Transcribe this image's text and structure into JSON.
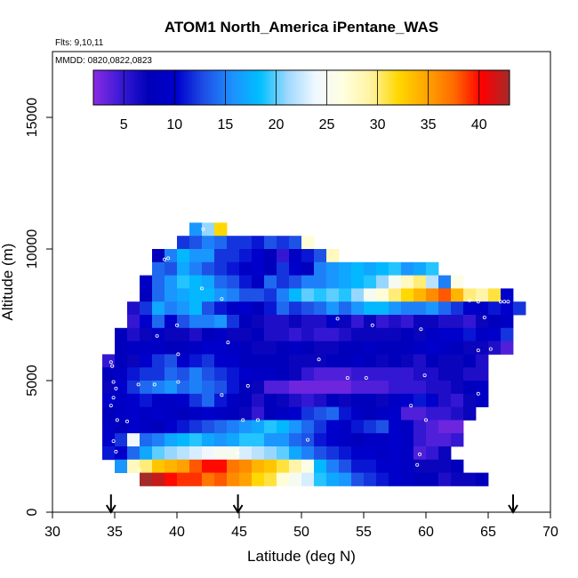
{
  "chart_data": {
    "type": "heatmap",
    "title": "ATOM1 North_America iPentane_WAS",
    "annotations": [
      "Flts: 9,10,11",
      "MMDD: 0820,0822,0823"
    ],
    "xlabel": "Latitude (deg N)",
    "ylabel": "Altitude (m)",
    "xlim": [
      30,
      70
    ],
    "ylim": [
      0,
      17500
    ],
    "xticks": [
      30,
      35,
      40,
      45,
      50,
      55,
      60,
      65,
      70
    ],
    "yticks": [
      0,
      5000,
      10000,
      15000
    ],
    "colorbar": {
      "range": [
        2,
        43
      ],
      "ticks": [
        5,
        10,
        15,
        20,
        25,
        30,
        35,
        40
      ],
      "colors": [
        "#8a2be2",
        "#3a1ad6",
        "#0000b8",
        "#0000cd",
        "#1e50e6",
        "#1e90ff",
        "#00bfff",
        "#9fd8ff",
        "#f0f8ff",
        "#ffffe0",
        "#fff3a0",
        "#ffd700",
        "#ffa500",
        "#ff6a00",
        "#ff0000",
        "#a52a2a"
      ]
    },
    "arrows_latitude": [
      34.7,
      44.9,
      67.0
    ],
    "cell_size": {
      "dlat": 1.0,
      "dalt": 500
    },
    "rows": [
      {
        "alt": 10750,
        "lat0": 41.5,
        "values": [
          16,
          21,
          32
        ]
      },
      {
        "alt": 10250,
        "lat0": 40.5,
        "values": [
          12,
          13,
          15,
          14,
          12,
          12,
          11,
          13,
          12,
          13,
          27
        ]
      },
      {
        "alt": 9750,
        "lat0": 38.5,
        "values": [
          8,
          15,
          18,
          16,
          16,
          12,
          12,
          11,
          10,
          8,
          5,
          9,
          11,
          13,
          28
        ]
      },
      {
        "alt": 9250,
        "lat0": 38.5,
        "values": [
          14,
          13,
          17,
          15,
          13,
          12,
          11,
          9,
          10,
          8,
          12,
          10,
          8,
          15,
          16,
          17,
          18,
          17,
          18,
          19,
          16,
          17,
          19
        ]
      },
      {
        "alt": 8750,
        "lat0": 37.5,
        "values": [
          9,
          14,
          16,
          19,
          18,
          17,
          14,
          13,
          11,
          9,
          14,
          12,
          13,
          15,
          15,
          16,
          17,
          18,
          19,
          21,
          25,
          28,
          30,
          22,
          15,
          26
        ]
      },
      {
        "alt": 8250,
        "lat0": 37.5,
        "values": [
          8,
          14,
          16,
          17,
          18,
          18,
          16,
          15,
          13,
          13,
          12,
          15,
          18,
          20,
          19,
          20,
          19,
          21,
          25,
          27,
          30,
          32,
          34,
          36,
          38,
          34,
          30,
          29,
          31,
          10
        ]
      },
      {
        "alt": 7750,
        "lat0": 36.5,
        "values": [
          6,
          12,
          17,
          15,
          16,
          18,
          13,
          11,
          9,
          10,
          8,
          11,
          14,
          12,
          13,
          14,
          16,
          14,
          16,
          18,
          18,
          16,
          15,
          15,
          16,
          14,
          12,
          10,
          9,
          11,
          10,
          12
        ]
      },
      {
        "alt": 7250,
        "lat0": 36.5,
        "values": [
          5,
          10,
          14,
          10,
          13,
          15,
          15,
          16,
          12,
          8,
          7,
          6,
          6,
          7,
          6,
          6,
          9,
          7,
          5,
          7,
          5,
          6,
          5,
          7,
          7,
          6,
          6,
          5,
          7,
          8,
          9
        ]
      },
      {
        "alt": 6750,
        "lat0": 35.5,
        "values": [
          8,
          6,
          7,
          9,
          7,
          7,
          6,
          8,
          9,
          7,
          7,
          8,
          6,
          6,
          5,
          6,
          5,
          5,
          6,
          7,
          7,
          7,
          7,
          8,
          7,
          9,
          10,
          10,
          11,
          9,
          10,
          12
        ]
      },
      {
        "alt": 6250,
        "lat0": 35.5,
        "values": [
          8,
          9,
          9,
          9,
          8,
          8,
          9,
          10,
          10,
          9,
          8,
          7,
          7,
          8,
          9,
          8,
          7,
          7,
          8,
          8,
          9,
          8,
          8,
          8,
          9,
          10,
          9,
          8,
          7,
          7,
          6,
          4
        ]
      },
      {
        "alt": 5750,
        "lat0": 34.5,
        "values": [
          5,
          8,
          7,
          10,
          12,
          13,
          10,
          11,
          12,
          10,
          10,
          8,
          8,
          8,
          8,
          7,
          7,
          7,
          8,
          8,
          9,
          8,
          7,
          8,
          7,
          6,
          8,
          7,
          7,
          8,
          6
        ]
      },
      {
        "alt": 5250,
        "lat0": 34.5,
        "values": [
          8,
          9,
          11,
          12,
          12,
          14,
          13,
          15,
          13,
          12,
          11,
          10,
          9,
          9,
          8,
          7,
          5,
          4,
          4,
          4,
          5,
          5,
          5,
          5,
          5,
          6,
          6,
          7,
          7,
          6,
          6
        ]
      },
      {
        "alt": 4750,
        "lat0": 34.5,
        "values": [
          7,
          10,
          12,
          14,
          15,
          16,
          14,
          15,
          14,
          13,
          11,
          8,
          7,
          4,
          4,
          3,
          3,
          3,
          3,
          3,
          4,
          4,
          4,
          5,
          5,
          5,
          6,
          6,
          7,
          8,
          9
        ]
      },
      {
        "alt": 4250,
        "lat0": 34.5,
        "values": [
          10,
          9,
          10,
          11,
          9,
          9,
          10,
          12,
          14,
          11,
          9,
          8,
          6,
          8,
          7,
          6,
          5,
          6,
          8,
          7,
          8,
          8,
          7,
          9,
          10,
          11,
          10,
          6,
          5,
          7,
          9
        ]
      },
      {
        "alt": 3750,
        "lat0": 34.5,
        "values": [
          8,
          9,
          10,
          9,
          10,
          9,
          8,
          9,
          10,
          9,
          8,
          7,
          5,
          8,
          9,
          10,
          12,
          13,
          14,
          11,
          9,
          8,
          9,
          10,
          4,
          4,
          5,
          5,
          6,
          7
        ]
      },
      {
        "alt": 3250,
        "lat0": 34.5,
        "values": [
          9,
          8,
          10,
          9,
          8,
          10,
          11,
          12,
          13,
          14,
          15,
          16,
          17,
          19,
          18,
          16,
          14,
          12,
          10,
          9,
          11,
          12,
          13,
          10,
          9,
          5,
          4,
          3,
          3
        ]
      },
      {
        "alt": 2750,
        "lat0": 34.5,
        "values": [
          10,
          12,
          24,
          14,
          15,
          17,
          18,
          19,
          17,
          16,
          17,
          19,
          19,
          16,
          16,
          14,
          13,
          11,
          10,
          9,
          8,
          9,
          9,
          10,
          9,
          5,
          4,
          4,
          5
        ]
      },
      {
        "alt": 2250,
        "lat0": 34.5,
        "values": [
          11,
          10,
          14,
          17,
          20,
          21,
          22,
          23,
          24,
          25,
          25,
          23,
          22,
          21,
          20,
          17,
          15,
          13,
          12,
          11,
          10,
          10,
          9,
          10,
          9,
          4,
          5,
          7
        ]
      },
      {
        "alt": 1750,
        "lat0": 35.5,
        "values": [
          16,
          28,
          30,
          33,
          34,
          35,
          38,
          40,
          40,
          37,
          36,
          34,
          33,
          31,
          29,
          26,
          18,
          15,
          13,
          11,
          11,
          10,
          10,
          9,
          7,
          7,
          7,
          8
        ]
      },
      {
        "alt": 1250,
        "lat0": 37.5,
        "values": [
          43,
          42,
          40,
          39,
          39,
          37,
          38,
          36,
          35,
          32,
          31,
          27,
          25,
          23,
          19,
          17,
          16,
          13,
          12,
          11,
          10,
          9,
          8,
          8,
          6,
          7,
          7,
          8
        ]
      }
    ],
    "sample_points": [
      [
        42.1,
        10750
      ],
      [
        39,
        9600
      ],
      [
        39.3,
        9650
      ],
      [
        42,
        8500
      ],
      [
        43.6,
        8100
      ],
      [
        40,
        7100
      ],
      [
        38.4,
        6700
      ],
      [
        44.1,
        6450
      ],
      [
        52.9,
        7350
      ],
      [
        55.7,
        7100
      ],
      [
        59.6,
        6950
      ],
      [
        64.2,
        6150
      ],
      [
        65.2,
        6200
      ],
      [
        64.7,
        7400
      ],
      [
        63.5,
        8050
      ],
      [
        64.2,
        8000
      ],
      [
        66,
        8000
      ],
      [
        66.3,
        8000
      ],
      [
        66.6,
        8000
      ],
      [
        40.1,
        6000
      ],
      [
        51.4,
        5800
      ],
      [
        34.7,
        5700
      ],
      [
        34.8,
        5550
      ],
      [
        34.9,
        4950
      ],
      [
        35.1,
        4700
      ],
      [
        34.9,
        4350
      ],
      [
        34.7,
        4050
      ],
      [
        36.9,
        4850
      ],
      [
        38.2,
        4850
      ],
      [
        40.1,
        4950
      ],
      [
        43.6,
        4450
      ],
      [
        45.7,
        4800
      ],
      [
        53.7,
        5100
      ],
      [
        55.2,
        5100
      ],
      [
        59.9,
        5200
      ],
      [
        64.2,
        4500
      ],
      [
        58.8,
        4050
      ],
      [
        60,
        3500
      ],
      [
        35.2,
        3500
      ],
      [
        36,
        3450
      ],
      [
        45.3,
        3500
      ],
      [
        46.5,
        3500
      ],
      [
        50.5,
        2750
      ],
      [
        34.9,
        2700
      ],
      [
        35.1,
        2300
      ],
      [
        37,
        1600
      ],
      [
        44.9,
        2250
      ],
      [
        59.5,
        2200
      ],
      [
        59.3,
        1800
      ],
      [
        67.8,
        6000
      ]
    ]
  }
}
